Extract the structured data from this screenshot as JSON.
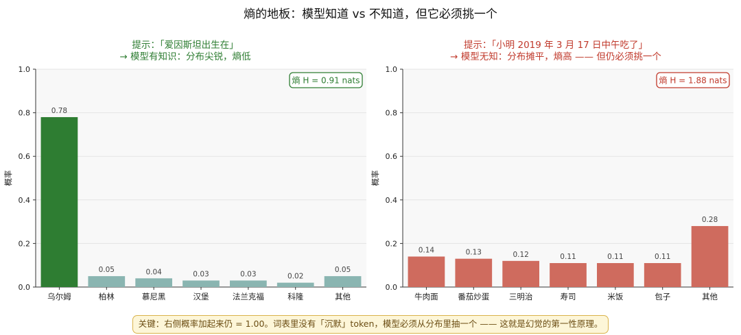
{
  "suptitle": "熵的地板：模型知道 vs 不知道，但它必须挑一个",
  "footer_note": "关键：右侧概率加起来仍 = 1.00。词表里没有「沉默」token，模型必须从分布里抽一个 —— 这就是幻觉的第一性原理。",
  "colors": {
    "green_dark": "#2e7d32",
    "green_light": "#8ab5b1",
    "red": "#cf6b5e",
    "plot_bg": "#f8f8f8",
    "grid": "#e4e4e4",
    "green_text": "#2e7d32",
    "red_text": "#c0392b"
  },
  "chart_data": [
    {
      "type": "bar",
      "title_line1": "提示：「爱因斯坦出生在」",
      "title_line2": "→ 模型有知识：分布尖锐，熵低",
      "ylabel": "概率",
      "xlabel": "",
      "ylim": [
        0,
        1.0
      ],
      "yticks": [
        0.0,
        0.2,
        0.4,
        0.6,
        0.8,
        1.0
      ],
      "ytick_labels": [
        "0.0",
        "0.2",
        "0.4",
        "0.6",
        "0.8",
        "1.0"
      ],
      "grid": true,
      "categories": [
        "乌尔姆",
        "柏林",
        "慕尼黑",
        "汉堡",
        "法兰克福",
        "科隆",
        "其他"
      ],
      "values": [
        0.78,
        0.05,
        0.04,
        0.03,
        0.03,
        0.02,
        0.05
      ],
      "value_labels": [
        "0.78",
        "0.05",
        "0.04",
        "0.03",
        "0.03",
        "0.02",
        "0.05"
      ],
      "annotation": "熵 H = 0.91 nats",
      "annotation_position": "top-right"
    },
    {
      "type": "bar",
      "title_line1": "提示：「小明 2019 年 3 月 17 日中午吃了」",
      "title_line2": "→ 模型无知：分布摊平，熵高 —— 但仍必须挑一个",
      "ylabel": "概率",
      "xlabel": "",
      "ylim": [
        0,
        1.0
      ],
      "yticks": [
        0.0,
        0.2,
        0.4,
        0.6,
        0.8,
        1.0
      ],
      "ytick_labels": [
        "0.0",
        "0.2",
        "0.4",
        "0.6",
        "0.8",
        "1.0"
      ],
      "grid": true,
      "categories": [
        "牛肉面",
        "番茄炒蛋",
        "三明治",
        "寿司",
        "米饭",
        "包子",
        "其他"
      ],
      "values": [
        0.14,
        0.13,
        0.12,
        0.11,
        0.11,
        0.11,
        0.28
      ],
      "value_labels": [
        "0.14",
        "0.13",
        "0.12",
        "0.11",
        "0.11",
        "0.11",
        "0.28"
      ],
      "annotation": "熵 H = 1.88 nats",
      "annotation_position": "top-right"
    }
  ]
}
